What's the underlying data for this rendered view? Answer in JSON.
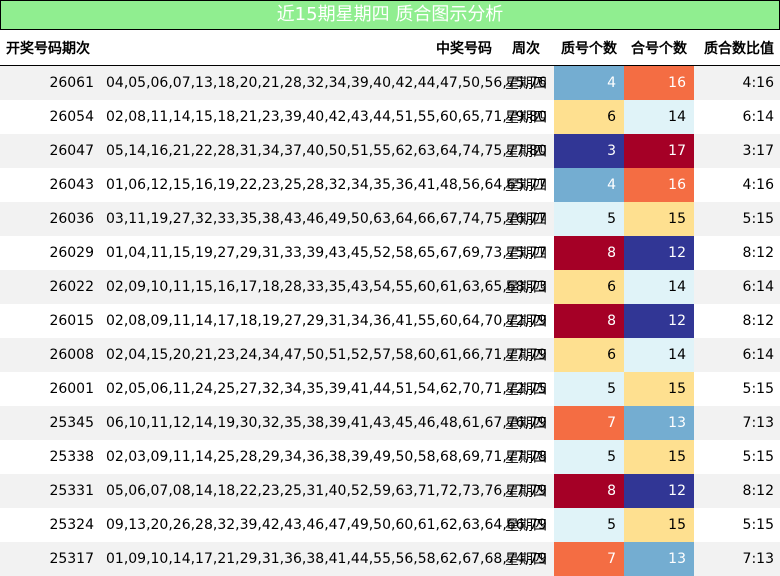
{
  "title": "近15期星期四 质合图示分析",
  "headers": {
    "issue": "开奖号码期次",
    "numbers": "中奖号码",
    "weekday": "周次",
    "prime_count": "质号个数",
    "composite_count": "合号个数",
    "ratio": "质合数比值"
  },
  "colors": {
    "header_bg": "#90ee90",
    "row_alt": "#f2f2f2",
    "c3": "#313695",
    "c4": "#74add1",
    "c5": "#e0f3f8",
    "c6": "#fee090",
    "c7": "#f46d43",
    "c8": "#a50026"
  },
  "rows": [
    {
      "issue": "26061",
      "numbers": "04,05,06,07,13,18,20,21,28,32,34,39,40,42,44,47,50,56,75,76",
      "weekday": "星期四",
      "prime": "4",
      "composite": "16",
      "ratio": "4:16"
    },
    {
      "issue": "26054",
      "numbers": "02,08,11,14,15,18,21,23,39,40,42,43,44,51,55,60,65,71,79,80",
      "weekday": "星期四",
      "prime": "6",
      "composite": "14",
      "ratio": "6:14"
    },
    {
      "issue": "26047",
      "numbers": "05,14,16,21,22,28,31,34,37,40,50,51,55,62,63,64,74,75,77,80",
      "weekday": "星期四",
      "prime": "3",
      "composite": "17",
      "ratio": "3:17"
    },
    {
      "issue": "26043",
      "numbers": "01,06,12,15,16,19,22,23,25,28,32,34,35,36,41,48,56,64,65,77",
      "weekday": "星期四",
      "prime": "4",
      "composite": "16",
      "ratio": "4:16"
    },
    {
      "issue": "26036",
      "numbers": "03,11,19,27,32,33,35,38,43,46,49,50,63,64,66,67,74,75,76,77",
      "weekday": "星期四",
      "prime": "5",
      "composite": "15",
      "ratio": "5:15"
    },
    {
      "issue": "26029",
      "numbers": "01,04,11,15,19,27,29,31,33,39,43,45,52,58,65,67,69,73,75,77",
      "weekday": "星期四",
      "prime": "8",
      "composite": "12",
      "ratio": "8:12"
    },
    {
      "issue": "26022",
      "numbers": "02,09,10,11,15,16,17,18,28,33,35,43,54,55,60,61,63,65,68,73",
      "weekday": "星期四",
      "prime": "6",
      "composite": "14",
      "ratio": "6:14"
    },
    {
      "issue": "26015",
      "numbers": "02,08,09,11,14,17,18,19,27,29,31,34,36,41,55,60,64,70,72,79",
      "weekday": "星期四",
      "prime": "8",
      "composite": "12",
      "ratio": "8:12"
    },
    {
      "issue": "26008",
      "numbers": "02,04,15,20,21,23,24,34,47,50,51,52,57,58,60,61,66,71,77,79",
      "weekday": "星期四",
      "prime": "6",
      "composite": "14",
      "ratio": "6:14"
    },
    {
      "issue": "26001",
      "numbers": "02,05,06,11,24,25,27,32,34,35,39,41,44,51,54,62,70,71,72,75",
      "weekday": "星期四",
      "prime": "5",
      "composite": "15",
      "ratio": "5:15"
    },
    {
      "issue": "25345",
      "numbers": "06,10,11,12,14,19,30,32,35,38,39,41,43,45,46,48,61,67,76,79",
      "weekday": "星期四",
      "prime": "7",
      "composite": "13",
      "ratio": "7:13"
    },
    {
      "issue": "25338",
      "numbers": "02,03,09,11,14,25,28,29,34,36,38,39,49,50,58,68,69,71,77,78",
      "weekday": "星期四",
      "prime": "5",
      "composite": "15",
      "ratio": "5:15"
    },
    {
      "issue": "25331",
      "numbers": "05,06,07,08,14,18,22,23,25,31,40,52,59,63,71,72,73,76,77,79",
      "weekday": "星期四",
      "prime": "8",
      "composite": "12",
      "ratio": "8:12"
    },
    {
      "issue": "25324",
      "numbers": "09,13,20,26,28,32,39,42,43,46,47,49,50,60,61,62,63,64,66,79",
      "weekday": "星期四",
      "prime": "5",
      "composite": "15",
      "ratio": "5:15"
    },
    {
      "issue": "25317",
      "numbers": "01,09,10,14,17,21,29,31,36,38,41,44,55,56,58,62,67,68,74,79",
      "weekday": "星期四",
      "prime": "7",
      "composite": "13",
      "ratio": "7:13"
    }
  ]
}
